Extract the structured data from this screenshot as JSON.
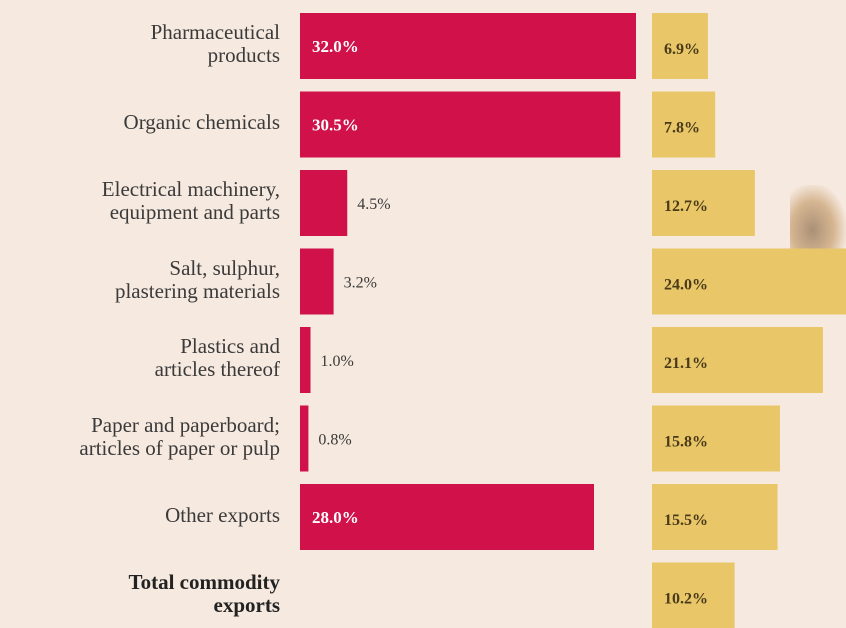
{
  "chart_data": {
    "type": "bar",
    "categories": [
      "Pharmaceutical products",
      "Organic chemicals",
      "Electrical machinery, equipment and parts",
      "Salt, sulphur, plastering materials",
      "Plastics and articles thereof",
      "Paper and paperboard; articles of paper or pulp",
      "Other exports",
      "Total commodity exports"
    ],
    "label_lines": [
      [
        "Pharmaceutical",
        "products"
      ],
      [
        "Organic chemicals"
      ],
      [
        "Electrical machinery,",
        "equipment and parts"
      ],
      [
        "Salt, sulphur,",
        "plastering materials"
      ],
      [
        "Plastics and",
        "articles thereof"
      ],
      [
        "Paper and paperboard;",
        "articles of paper or pulp"
      ],
      [
        "Other exports"
      ],
      [
        "Total commodity",
        "exports"
      ]
    ],
    "series": [
      {
        "values": [
          32.0,
          30.5,
          4.5,
          3.2,
          1.0,
          0.8,
          28.0,
          null
        ],
        "labels": [
          "32.0%",
          "30.5%",
          "4.5%",
          "3.2%",
          "1.0%",
          "0.8%",
          "28.0%",
          ""
        ]
      },
      {
        "values": [
          6.9,
          7.8,
          12.7,
          24.0,
          21.1,
          15.8,
          15.5,
          10.2
        ],
        "labels": [
          "6.9%",
          "7.8%",
          "12.7%",
          "24.0%",
          "21.1%",
          "15.8%",
          "15.5%",
          "10.2%"
        ]
      }
    ],
    "colors": {
      "series1": "#d0114a",
      "series2": "#e9c768",
      "series1_inside_text": "#ffffff",
      "series1_outside_text": "#3a3a3a",
      "series2_text": "#4a3a1a"
    },
    "ylim": [
      0,
      32.0
    ],
    "legend": "none",
    "grid": false
  }
}
